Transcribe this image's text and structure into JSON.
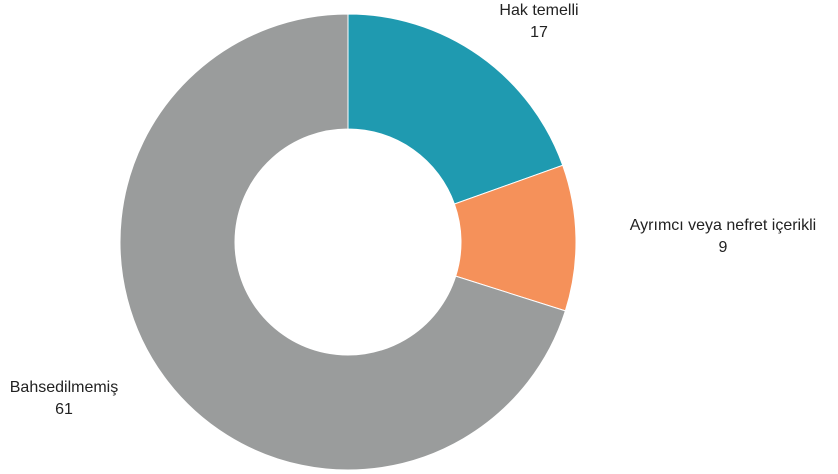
{
  "chart_data": {
    "type": "pie",
    "variant": "donut",
    "title": "",
    "start_angle_deg": 0,
    "direction": "clockwise",
    "slices": [
      {
        "label": "Hak temelli",
        "value": 17,
        "color": "#1f9ab0"
      },
      {
        "label": "Ayrımcı veya nefret içerikli",
        "value": 9,
        "color": "#f5915a"
      },
      {
        "label": "Bahsedilmemiş",
        "value": 61,
        "color": "#9a9c9c"
      }
    ]
  }
}
